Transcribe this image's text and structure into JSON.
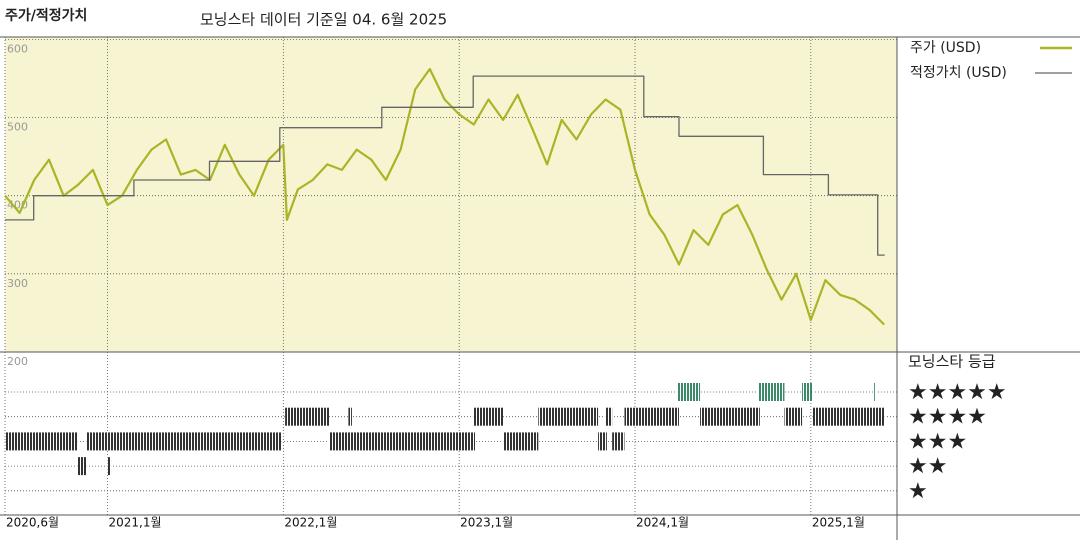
{
  "chart_data": {
    "type": "line",
    "title": "주가/적정가치",
    "subtitle": "모닝스타 데이터 기준일 04. 6월 2025",
    "xlim": [
      2020.417,
      2025.49
    ],
    "xticks": [
      {
        "value": 2020.417,
        "label": "2020,6월"
      },
      {
        "value": 2021.0,
        "label": "2021,1월"
      },
      {
        "value": 2022.0,
        "label": "2022,1월"
      },
      {
        "value": 2023.0,
        "label": "2023,1월"
      },
      {
        "value": 2024.0,
        "label": "2024,1월"
      },
      {
        "value": 2025.0,
        "label": "2025,1월"
      }
    ],
    "ylim": [
      200,
      603
    ],
    "yticks": [
      600,
      500,
      400,
      300,
      200
    ],
    "grid": true,
    "series": [
      {
        "name": "주가 (USD)",
        "color": "#a9b526",
        "step": false,
        "x": [
          2020.417,
          2020.5,
          2020.583,
          2020.667,
          2020.75,
          2020.833,
          2020.917,
          2021.0,
          2021.083,
          2021.167,
          2021.25,
          2021.333,
          2021.417,
          2021.5,
          2021.583,
          2021.667,
          2021.75,
          2021.833,
          2021.917,
          2022.0,
          2022.02,
          2022.083,
          2022.167,
          2022.25,
          2022.333,
          2022.417,
          2022.5,
          2022.583,
          2022.667,
          2022.75,
          2022.833,
          2022.917,
          2023.0,
          2023.083,
          2023.167,
          2023.25,
          2023.333,
          2023.417,
          2023.5,
          2023.583,
          2023.667,
          2023.75,
          2023.833,
          2023.917,
          2024.0,
          2024.083,
          2024.167,
          2024.25,
          2024.333,
          2024.417,
          2024.5,
          2024.583,
          2024.667,
          2024.75,
          2024.833,
          2024.917,
          2025.0,
          2025.083,
          2025.167,
          2025.25,
          2025.333,
          2025.417
        ],
        "values": [
          400,
          378,
          420,
          446,
          400,
          414,
          433,
          388,
          400,
          433,
          459,
          472,
          427,
          433,
          420,
          465,
          427,
          400,
          446,
          465,
          369,
          408,
          420,
          440,
          433,
          459,
          446,
          420,
          459,
          536,
          562,
          523,
          504,
          491,
          523,
          497,
          529,
          485,
          440,
          497,
          472,
          504,
          523,
          510,
          433,
          376,
          350,
          312,
          356,
          337,
          376,
          388,
          350,
          305,
          267,
          300,
          241,
          292,
          273,
          267,
          254,
          235
        ]
      },
      {
        "name": "적정가치 (USD)",
        "color": "#666666",
        "step": true,
        "x": [
          2020.417,
          2020.58,
          2021.15,
          2021.58,
          2021.98,
          2022.56,
          2023.08,
          2024.05,
          2024.25,
          2024.73,
          2025.1,
          2025.38,
          2025.42
        ],
        "values": [
          369,
          400,
          420,
          444,
          487,
          513,
          553,
          501,
          476,
          427,
          401,
          324,
          324
        ]
      }
    ],
    "rating_title": "모닝스타 등급",
    "ratings": [
      {
        "label": "★★★★★",
        "color": "#3d8a6a",
        "periods": [
          [
            2024.24,
            2024.37
          ],
          [
            2024.7,
            2024.85
          ],
          [
            2024.95,
            2025.01
          ],
          [
            2025.36,
            2025.37
          ]
        ]
      },
      {
        "label": "★★★★",
        "color": "#333333",
        "periods": [
          [
            2022.01,
            2022.26
          ],
          [
            2022.37,
            2022.39
          ],
          [
            2023.08,
            2023.25
          ],
          [
            2023.45,
            2023.79
          ],
          [
            2023.83,
            2023.87
          ],
          [
            2023.94,
            2024.25
          ],
          [
            2024.37,
            2024.71
          ],
          [
            2024.85,
            2024.95
          ],
          [
            2025.01,
            2025.42
          ]
        ]
      },
      {
        "label": "★★★",
        "color": "#333333",
        "periods": [
          [
            2020.42,
            2020.83
          ],
          [
            2020.88,
            2021.99
          ],
          [
            2022.26,
            2023.09
          ],
          [
            2023.25,
            2023.45
          ],
          [
            2023.79,
            2023.84
          ],
          [
            2023.87,
            2023.94
          ]
        ]
      },
      {
        "label": "★★",
        "color": "#333333",
        "periods": [
          [
            2020.83,
            2020.88
          ],
          [
            2021.0,
            2021.02
          ]
        ]
      },
      {
        "label": "★",
        "color": "#333333",
        "periods": []
      }
    ]
  }
}
